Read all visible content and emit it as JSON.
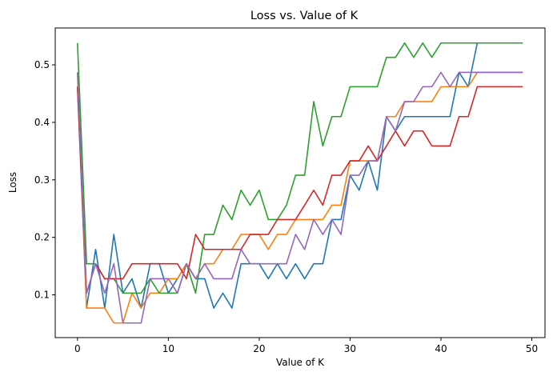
{
  "chart_data": {
    "type": "line",
    "title": "Loss vs. Value of K",
    "xlabel": "Value of K",
    "ylabel": "Loss",
    "xlim": [
      -2.45,
      51.45
    ],
    "ylim": [
      0.0256,
      0.5641
    ],
    "xticks": [
      0,
      10,
      20,
      30,
      40,
      50
    ],
    "yticks": [
      0.1,
      0.2,
      0.3,
      0.4,
      0.5
    ],
    "grid": false,
    "x": [
      0,
      1,
      2,
      3,
      4,
      5,
      6,
      7,
      8,
      9,
      10,
      11,
      12,
      13,
      14,
      15,
      16,
      17,
      18,
      19,
      20,
      21,
      22,
      23,
      24,
      25,
      26,
      27,
      28,
      29,
      30,
      31,
      32,
      33,
      34,
      35,
      36,
      37,
      38,
      39,
      40,
      41,
      42,
      43,
      44,
      45,
      46,
      47,
      48,
      49
    ],
    "series": [
      {
        "color": "#1f77b4",
        "values": [
          0.462,
          0.077,
          0.179,
          0.077,
          0.205,
          0.103,
          0.128,
          0.077,
          0.154,
          0.154,
          0.103,
          0.128,
          0.154,
          0.128,
          0.128,
          0.077,
          0.103,
          0.077,
          0.154,
          0.154,
          0.154,
          0.128,
          0.154,
          0.128,
          0.154,
          0.128,
          0.154,
          0.154,
          0.231,
          0.231,
          0.308,
          0.282,
          0.333,
          0.282,
          0.41,
          0.385,
          0.41,
          0.41,
          0.41,
          0.41,
          0.41,
          0.41,
          0.487,
          0.462,
          0.538,
          0.538,
          0.538,
          0.538,
          0.538,
          0.538
        ]
      },
      {
        "color": "#ff7f0e",
        "values": [
          0.487,
          0.077,
          0.077,
          0.077,
          0.051,
          0.051,
          0.103,
          0.077,
          0.103,
          0.103,
          0.128,
          0.128,
          0.154,
          0.128,
          0.154,
          0.154,
          0.179,
          0.179,
          0.205,
          0.205,
          0.205,
          0.179,
          0.205,
          0.205,
          0.231,
          0.231,
          0.231,
          0.231,
          0.256,
          0.256,
          0.333,
          0.333,
          0.333,
          0.333,
          0.41,
          0.41,
          0.436,
          0.436,
          0.436,
          0.436,
          0.462,
          0.462,
          0.462,
          0.462,
          0.487,
          0.487,
          0.487,
          0.487,
          0.487,
          0.487
        ]
      },
      {
        "color": "#2ca02c",
        "values": [
          0.538,
          0.154,
          0.154,
          0.128,
          0.128,
          0.103,
          0.103,
          0.103,
          0.128,
          0.103,
          0.103,
          0.103,
          0.154,
          0.103,
          0.205,
          0.205,
          0.256,
          0.231,
          0.282,
          0.256,
          0.282,
          0.231,
          0.231,
          0.256,
          0.308,
          0.308,
          0.436,
          0.359,
          0.41,
          0.41,
          0.462,
          0.462,
          0.462,
          0.462,
          0.513,
          0.513,
          0.538,
          0.513,
          0.538,
          0.513,
          0.538,
          0.538,
          0.538,
          0.538,
          0.538,
          0.538,
          0.538,
          0.538,
          0.538,
          0.538
        ]
      },
      {
        "color": "#d62728",
        "values": [
          0.462,
          0.103,
          0.154,
          0.128,
          0.128,
          0.128,
          0.154,
          0.154,
          0.154,
          0.154,
          0.154,
          0.154,
          0.128,
          0.205,
          0.179,
          0.179,
          0.179,
          0.179,
          0.179,
          0.205,
          0.205,
          0.205,
          0.231,
          0.231,
          0.231,
          0.256,
          0.282,
          0.256,
          0.308,
          0.308,
          0.333,
          0.333,
          0.359,
          0.333,
          0.359,
          0.385,
          0.359,
          0.385,
          0.385,
          0.359,
          0.359,
          0.359,
          0.41,
          0.41,
          0.462,
          0.462,
          0.462,
          0.462,
          0.462,
          0.462
        ]
      },
      {
        "color": "#9467bd",
        "values": [
          0.487,
          0.103,
          0.154,
          0.103,
          0.154,
          0.051,
          0.051,
          0.051,
          0.128,
          0.128,
          0.128,
          0.103,
          0.154,
          0.128,
          0.154,
          0.128,
          0.128,
          0.128,
          0.179,
          0.154,
          0.154,
          0.154,
          0.154,
          0.154,
          0.205,
          0.179,
          0.231,
          0.205,
          0.231,
          0.205,
          0.308,
          0.308,
          0.333,
          0.333,
          0.41,
          0.385,
          0.436,
          0.436,
          0.462,
          0.462,
          0.487,
          0.462,
          0.487,
          0.487,
          0.487,
          0.487,
          0.487,
          0.487,
          0.487,
          0.487
        ]
      }
    ]
  }
}
